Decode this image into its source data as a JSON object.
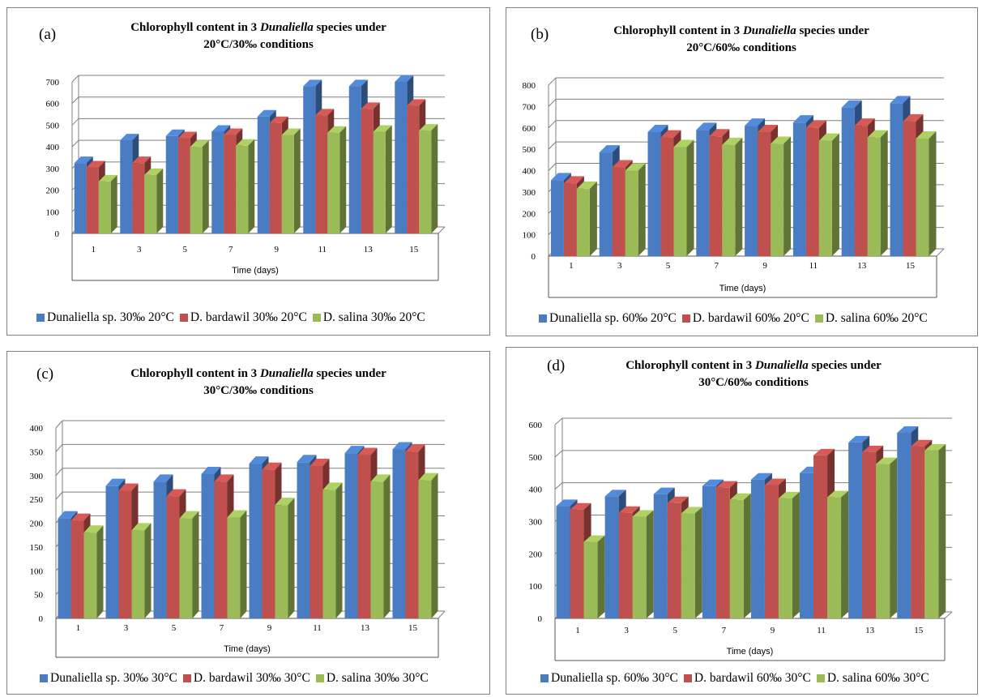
{
  "colors": {
    "s1": "#4a7cc4",
    "s2": "#c0504d",
    "s3": "#9bbb59"
  },
  "panels": [
    {
      "letter": "(a)",
      "title_prefix": "Chlorophyll content in 3 ",
      "title_italic": "Dunaliella",
      "title_suffix": " species under",
      "title_line2": "20°C/30‰ conditions",
      "legend": [
        "Dunaliella sp. 30‰ 20°C",
        "D. bardawil 30‰ 20°C",
        "D. salina 30‰ 20°C"
      ]
    },
    {
      "letter": "(b)",
      "title_prefix": "Chlorophyll content in 3 ",
      "title_italic": "Dunaliella",
      "title_suffix": " species under",
      "title_line2": "20°C/60‰ conditions",
      "legend": [
        "Dunaliella sp. 60‰ 20°C",
        "D. bardawil 60‰ 20°C",
        "D. salina 60‰ 20°C"
      ]
    },
    {
      "letter": "(c)",
      "title_prefix": "Chlorophyll content in 3 ",
      "title_italic": "Dunaliella",
      "title_suffix": " species under",
      "title_line2": "30°C/30‰ conditions",
      "legend": [
        "Dunaliella sp. 30‰ 30°C",
        "D. bardawil 30‰ 30°C",
        "D. salina 30‰ 30°C"
      ]
    },
    {
      "letter": "(d)",
      "title_prefix": "Chlorophyll content in 3 ",
      "title_italic": "Dunaliella",
      "title_suffix": " species under",
      "title_line2": "30°C/60‰ conditions",
      "legend": [
        "Dunaliella sp. 60‰ 30°C",
        "D. bardawil 60‰ 30°C",
        "D. salina 60‰ 30°C"
      ]
    }
  ],
  "chart_data": [
    {
      "type": "bar",
      "title": "Chlorophyll content in 3 Dunaliella species under 20°C/30‰ conditions",
      "xlabel": "Time (days)",
      "ylabel": "",
      "categories": [
        "1",
        "3",
        "5",
        "7",
        "9",
        "11",
        "13",
        "15"
      ],
      "ylim": [
        0,
        700
      ],
      "yticks": [
        0,
        100,
        200,
        300,
        400,
        500,
        600,
        700
      ],
      "grid": true,
      "legend_position": "bottom",
      "series": [
        {
          "name": "Dunaliella sp. 30‰ 20°C",
          "values": [
            325,
            430,
            450,
            470,
            540,
            680,
            680,
            700
          ]
        },
        {
          "name": "D. bardawil 30‰ 20°C",
          "values": [
            305,
            325,
            440,
            455,
            510,
            545,
            575,
            590
          ]
        },
        {
          "name": "D. salina 30‰ 20°C",
          "values": [
            240,
            270,
            400,
            405,
            455,
            465,
            470,
            475
          ]
        }
      ]
    },
    {
      "type": "bar",
      "title": "Chlorophyll content in 3 Dunaliella species under 20°C/60‰ conditions",
      "xlabel": "Time (days)",
      "ylabel": "",
      "categories": [
        "1",
        "3",
        "5",
        "7",
        "9",
        "11",
        "13",
        "15"
      ],
      "ylim": [
        0,
        800
      ],
      "yticks": [
        0,
        100,
        200,
        300,
        400,
        500,
        600,
        700,
        800
      ],
      "grid": true,
      "legend_position": "bottom",
      "series": [
        {
          "name": "Dunaliella sp. 60‰ 20°C",
          "values": [
            355,
            485,
            580,
            590,
            610,
            625,
            695,
            715
          ]
        },
        {
          "name": "D. bardawil 60‰ 20°C",
          "values": [
            340,
            415,
            555,
            560,
            580,
            600,
            610,
            630
          ]
        },
        {
          "name": "D. salina 60‰ 20°C",
          "values": [
            315,
            400,
            510,
            520,
            525,
            540,
            555,
            550
          ]
        }
      ]
    },
    {
      "type": "bar",
      "title": "Chlorophyll content in 3 Dunaliella species under 30°C/30‰ conditions",
      "xlabel": "Time (days)",
      "ylabel": "",
      "categories": [
        "1",
        "3",
        "5",
        "7",
        "9",
        "11",
        "13",
        "15"
      ],
      "ylim": [
        0,
        400
      ],
      "yticks": [
        0,
        50,
        100,
        150,
        200,
        250,
        300,
        350,
        400
      ],
      "grid": true,
      "legend_position": "bottom",
      "series": [
        {
          "name": "Dunaliella sp. 30‰ 30°C",
          "values": [
            210,
            278,
            287,
            303,
            325,
            328,
            347,
            355
          ]
        },
        {
          "name": "D. bardawil 30‰ 30°C",
          "values": [
            205,
            268,
            256,
            287,
            312,
            320,
            343,
            350
          ]
        },
        {
          "name": "D. salina 30‰ 30°C",
          "values": [
            180,
            185,
            210,
            212,
            238,
            270,
            287,
            290
          ]
        }
      ]
    },
    {
      "type": "bar",
      "title": "Chlorophyll content in 3 Dunaliella species under 30°C/60‰ conditions",
      "xlabel": "Time (days)",
      "ylabel": "",
      "categories": [
        "1",
        "3",
        "5",
        "7",
        "9",
        "11",
        "13",
        "15"
      ],
      "ylim": [
        0,
        600
      ],
      "yticks": [
        0,
        100,
        200,
        300,
        400,
        500,
        600
      ],
      "grid": true,
      "legend_position": "bottom",
      "series": [
        {
          "name": "Dunaliella sp. 60‰ 30°C",
          "values": [
            348,
            378,
            385,
            410,
            430,
            450,
            545,
            575
          ]
        },
        {
          "name": "D. bardawil 60‰ 30°C",
          "values": [
            337,
            327,
            357,
            405,
            413,
            505,
            515,
            533
          ]
        },
        {
          "name": "D. salina 60‰ 30°C",
          "values": [
            237,
            315,
            325,
            367,
            372,
            375,
            478,
            520
          ]
        }
      ]
    }
  ]
}
